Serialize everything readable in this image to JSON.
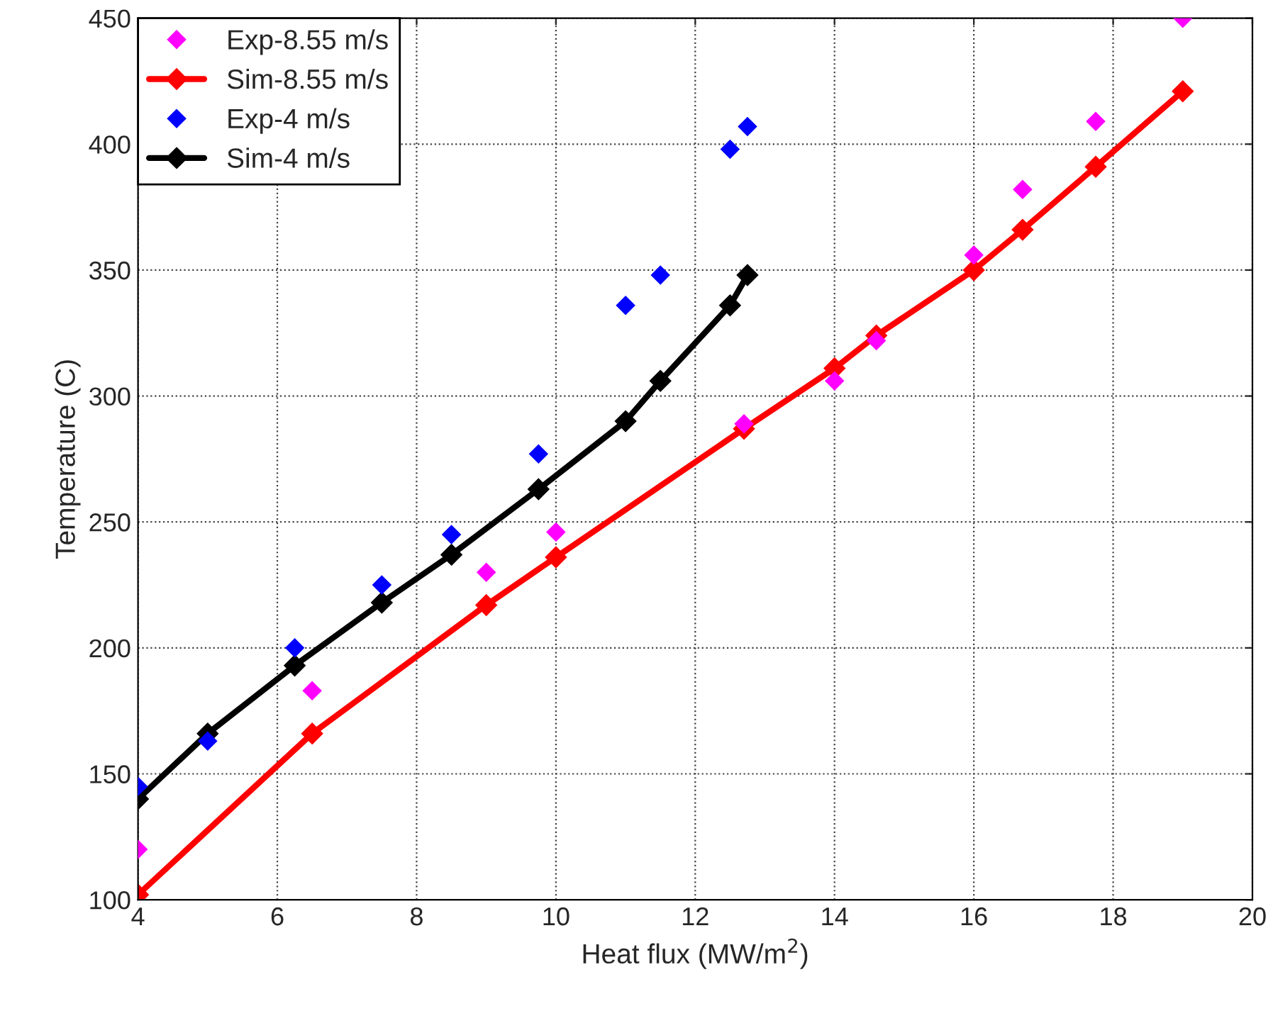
{
  "chart_data": {
    "type": "line",
    "xlabel": "Heat flux (MW/m$^{2}$)",
    "ylabel": "Temperature (C)",
    "xlim": [
      4,
      20
    ],
    "ylim": [
      100,
      450
    ],
    "xticks": [
      4,
      6,
      8,
      10,
      12,
      14,
      16,
      18,
      20
    ],
    "yticks": [
      100,
      150,
      200,
      250,
      300,
      350,
      400,
      450
    ],
    "grid": true,
    "legend": "top left",
    "marker": "diamond",
    "series": [
      {
        "name": "Exp-8.55 m/s",
        "type": "scatter",
        "color": "#ff00ff",
        "x": [
          4,
          6.5,
          9,
          10,
          12.7,
          14,
          14.6,
          16,
          16.7,
          17.75,
          19
        ],
        "values": [
          120,
          183,
          230,
          246,
          289,
          306,
          322,
          356,
          382,
          409,
          450
        ]
      },
      {
        "name": "Sim-8.55 m/s",
        "color": "#ff0000",
        "x": [
          4,
          6.5,
          9,
          10,
          12.7,
          14,
          14.6,
          16,
          16.7,
          17.75,
          19
        ],
        "values": [
          102,
          166,
          217,
          236,
          287,
          311,
          324,
          350,
          366,
          391,
          421
        ]
      },
      {
        "name": "Exp-4 m/s",
        "type": "scatter",
        "color": "#0000ff",
        "x": [
          4,
          5,
          6.25,
          7.5,
          8.5,
          9.75,
          11,
          11.5,
          12.5,
          12.75
        ],
        "values": [
          145,
          163,
          200,
          225,
          245,
          277,
          336,
          348,
          398,
          407
        ]
      },
      {
        "name": "Sim-4 m/s",
        "color": "#000000",
        "x": [
          4,
          5,
          6.25,
          7.5,
          8.5,
          9.75,
          11,
          11.5,
          12.5,
          12.75
        ],
        "values": [
          140,
          166,
          193,
          218,
          237,
          263,
          290,
          306,
          336,
          348
        ]
      }
    ]
  }
}
